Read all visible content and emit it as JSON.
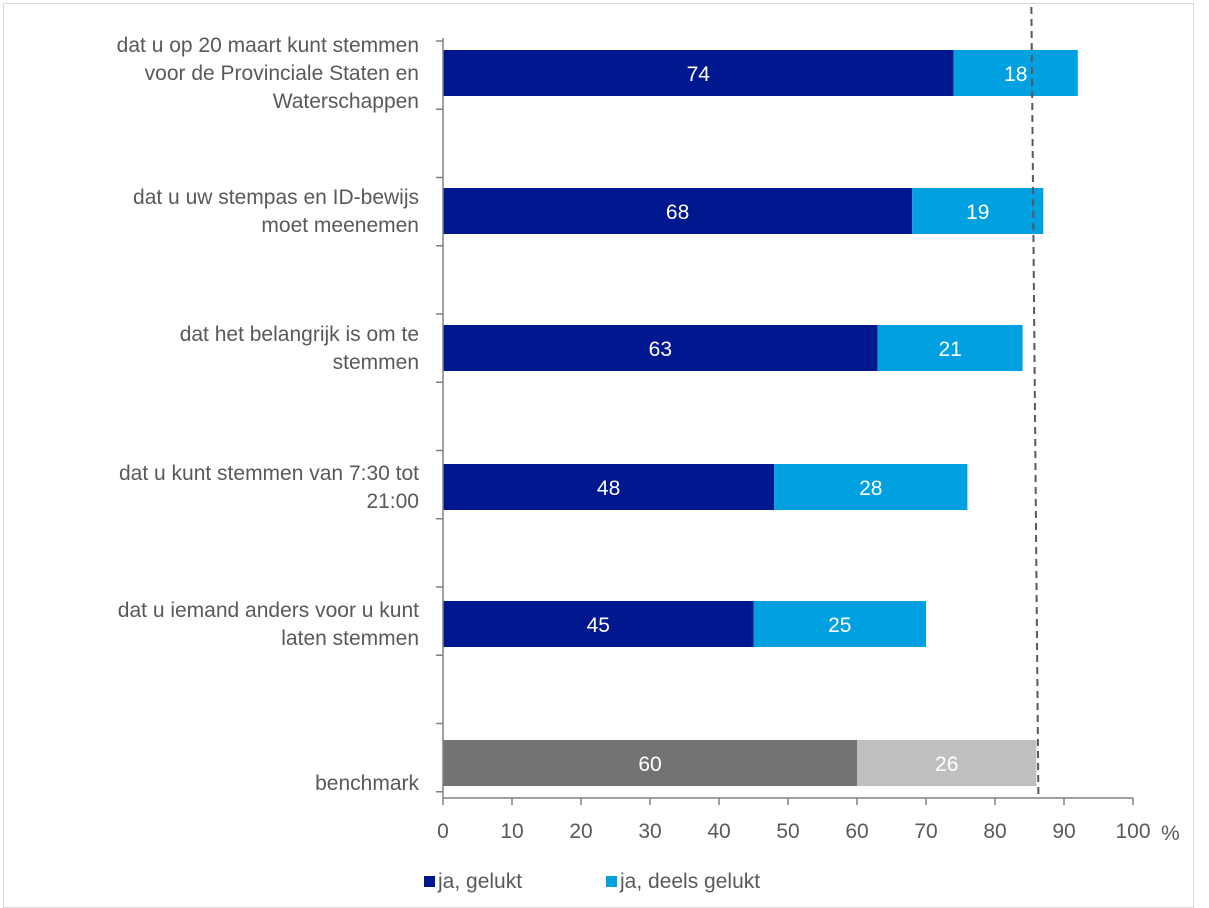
{
  "chart_data": {
    "type": "bar",
    "orientation": "horizontal",
    "stacked": true,
    "categories": [
      [
        "dat u op 20 maart kunt stemmen",
        "voor de Provinciale Staten en",
        "Waterschappen"
      ],
      [
        "dat u uw stempas en ID-bewijs",
        "moet meenemen"
      ],
      [
        "dat het belangrijk is om te",
        "stemmen"
      ],
      [
        "dat u kunt stemmen van 7:30 tot",
        "21:00"
      ],
      [
        "dat u iemand anders voor u kunt",
        "laten stemmen"
      ],
      [
        "benchmark"
      ]
    ],
    "series": [
      {
        "name": "ja, gelukt",
        "values": [
          74,
          68,
          63,
          48,
          45,
          60
        ],
        "colors": [
          "#00188f",
          "#00188f",
          "#00188f",
          "#00188f",
          "#00188f",
          "#737373"
        ]
      },
      {
        "name": "ja, deels gelukt",
        "values": [
          18,
          19,
          21,
          28,
          25,
          26
        ],
        "colors": [
          "#00a0e1",
          "#00a0e1",
          "#00a0e1",
          "#00a0e1",
          "#00a0e1",
          "#bfbfbf"
        ]
      }
    ],
    "reference_line": {
      "value": 86,
      "style": "dashed",
      "color": "#595959"
    },
    "xlim": [
      0,
      100
    ],
    "xticks": [
      "0",
      "10",
      "20",
      "30",
      "40",
      "50",
      "60",
      "70",
      "80",
      "90",
      "100"
    ],
    "xunit": "%",
    "legend": {
      "position": "bottom",
      "entries": [
        {
          "label": "ja, gelukt",
          "color": "#00188f"
        },
        {
          "label": "ja, deels gelukt",
          "color": "#00a0e1"
        }
      ]
    },
    "grid": false
  }
}
